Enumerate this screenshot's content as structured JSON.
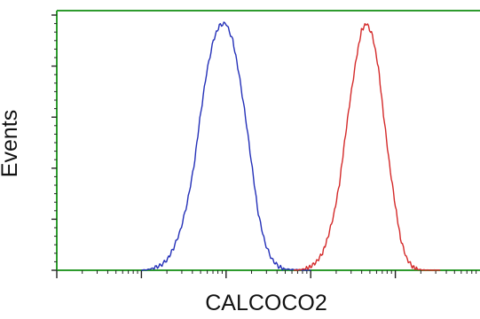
{
  "chart_data": {
    "type": "line",
    "title": "",
    "xlabel": "CALCOCO2",
    "ylabel": "Events",
    "x_scale": "log",
    "grid": false,
    "legend": "none",
    "colors": {
      "axis": "#2e9b2e",
      "control": "#2430b8",
      "sample": "#d42a2a"
    },
    "series": [
      {
        "x": [
          1.0,
          1.08,
          1.15,
          1.23,
          1.31,
          1.38,
          1.46,
          1.54,
          1.62,
          1.69,
          1.77,
          1.85,
          1.92,
          2.0,
          2.08,
          2.15,
          2.23,
          2.31,
          2.38,
          2.46,
          2.54,
          2.62,
          2.69,
          2.77,
          2.85,
          2.92,
          3.0
        ],
        "y": [
          0.0,
          0.003,
          0.01,
          0.02,
          0.045,
          0.09,
          0.16,
          0.27,
          0.42,
          0.61,
          0.8,
          0.93,
          0.99,
          1.0,
          0.93,
          0.8,
          0.62,
          0.41,
          0.23,
          0.11,
          0.045,
          0.015,
          0.005,
          0.003,
          0.002,
          0.0,
          0.0
        ]
      },
      {
        "x": [
          2.8,
          2.87,
          2.94,
          3.0,
          3.07,
          3.14,
          3.2,
          3.27,
          3.34,
          3.4,
          3.47,
          3.54,
          3.6,
          3.66,
          3.73,
          3.8,
          3.86,
          3.93,
          4.0,
          4.06,
          4.13,
          4.2,
          4.26,
          4.33,
          4.4,
          4.46,
          4.53
        ],
        "y": [
          0.0,
          0.002,
          0.006,
          0.015,
          0.035,
          0.07,
          0.13,
          0.22,
          0.35,
          0.52,
          0.7,
          0.86,
          0.97,
          1.0,
          0.95,
          0.82,
          0.63,
          0.43,
          0.26,
          0.13,
          0.05,
          0.015,
          0.004,
          0.001,
          0.0,
          0.0,
          0.0
        ]
      }
    ],
    "xlim": [
      0.0,
      5.0
    ],
    "ylim": [
      0.0,
      1.0
    ]
  }
}
